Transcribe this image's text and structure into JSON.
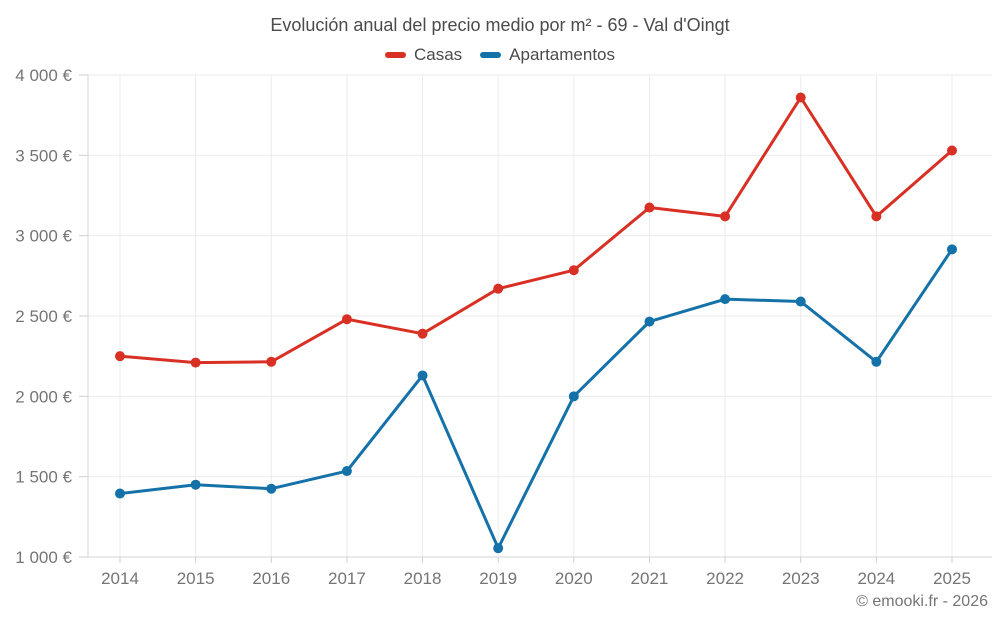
{
  "page": {
    "title": "Evolución anual del precio medio por m² - 69 - Val d'Oingt",
    "footer": "© emooki.fr - 2026"
  },
  "legend": {
    "items": [
      {
        "label": "Casas",
        "color": "#d93025"
      },
      {
        "label": "Apartamentos",
        "color": "#1572a9"
      }
    ]
  },
  "chart_data": {
    "type": "line",
    "title": "Evolución anual del precio medio por m² - 69 - Val d'Oingt",
    "categories": [
      "2014",
      "2015",
      "2016",
      "2017",
      "2018",
      "2019",
      "2020",
      "2021",
      "2022",
      "2023",
      "2024",
      "2025"
    ],
    "series": [
      {
        "name": "Casas",
        "color": "#d93025",
        "values": [
          2250,
          2210,
          2215,
          2480,
          2390,
          2670,
          2785,
          3175,
          3120,
          3860,
          3120,
          3530
        ]
      },
      {
        "name": "Apartamentos",
        "color": "#1572a9",
        "values": [
          1395,
          1450,
          1425,
          1535,
          2130,
          1055,
          2000,
          2465,
          2605,
          2590,
          2215,
          2915
        ]
      }
    ],
    "xlabel": "",
    "ylabel": "",
    "ylim": [
      1000,
      4000
    ],
    "y_ticks": {
      "values": [
        1000,
        1500,
        2000,
        2500,
        3000,
        3500,
        4000
      ],
      "labels": [
        "1 000 €",
        "1 500 €",
        "2 000 €",
        "2 500 €",
        "3 000 €",
        "3 500 €",
        "4 000 €"
      ]
    },
    "grid": true,
    "legend_position": "top",
    "currency_suffix": " €"
  }
}
